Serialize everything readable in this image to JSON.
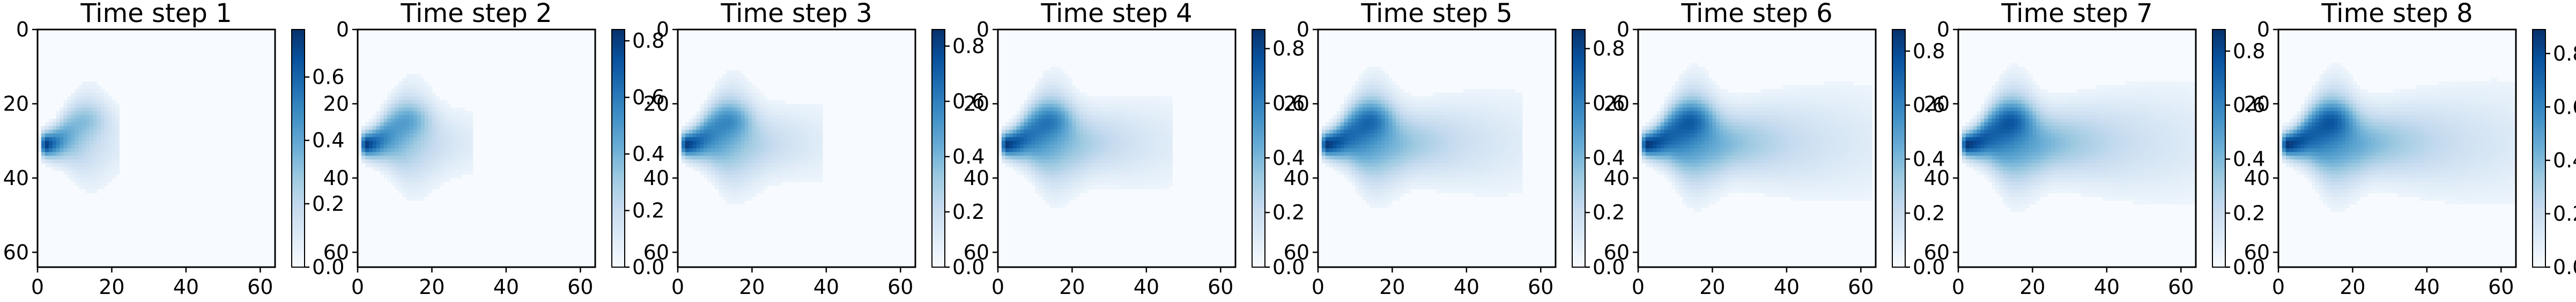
{
  "colors": {
    "cmap_low": "#f7fbff",
    "cmap_high": "#08306b",
    "text": "#000000"
  },
  "chart_data": {
    "type": "heatmap",
    "colormap": "Blues",
    "grid_size": 64,
    "image_axes": {
      "x_ticks": [
        0,
        20,
        40,
        60
      ],
      "y_ticks": [
        0,
        20,
        40,
        60
      ],
      "xlim": [
        0,
        64
      ],
      "ylim": [
        64,
        0
      ]
    },
    "source_point": [
      2,
      31
    ],
    "panels": [
      {
        "title": "Time step 1",
        "plume_length": 20,
        "peak": 0.75,
        "colorbar": {
          "ticks": [
            "0.0",
            "0.2",
            "0.4",
            "0.6"
          ],
          "values": [
            0.0,
            0.2,
            0.4,
            0.6
          ],
          "range": [
            0.0,
            0.75
          ]
        }
      },
      {
        "title": "Time step 2",
        "plume_length": 28,
        "peak": 0.84,
        "colorbar": {
          "ticks": [
            "0.0",
            "0.2",
            "0.4",
            "0.6",
            "0.8"
          ],
          "values": [
            0.0,
            0.2,
            0.4,
            0.6,
            0.8
          ],
          "range": [
            0.0,
            0.84
          ]
        }
      },
      {
        "title": "Time step 3",
        "plume_length": 36,
        "peak": 0.86,
        "colorbar": {
          "ticks": [
            "0.0",
            "0.2",
            "0.4",
            "0.6",
            "0.8"
          ],
          "values": [
            0.0,
            0.2,
            0.4,
            0.6,
            0.8
          ],
          "range": [
            0.0,
            0.86
          ]
        }
      },
      {
        "title": "Time step 4",
        "plume_length": 44,
        "peak": 0.87,
        "colorbar": {
          "ticks": [
            "0.0",
            "0.2",
            "0.4",
            "0.6",
            "0.8"
          ],
          "values": [
            0.0,
            0.2,
            0.4,
            0.6,
            0.8
          ],
          "range": [
            0.0,
            0.87
          ]
        }
      },
      {
        "title": "Time step 5",
        "plume_length": 52,
        "peak": 0.87,
        "colorbar": {
          "ticks": [
            "0.0",
            "0.2",
            "0.4",
            "0.6",
            "0.8"
          ],
          "values": [
            0.0,
            0.2,
            0.4,
            0.6,
            0.8
          ],
          "range": [
            0.0,
            0.87
          ]
        }
      },
      {
        "title": "Time step 6",
        "plume_length": 60,
        "peak": 0.88,
        "colorbar": {
          "ticks": [
            "0.0",
            "0.2",
            "0.4",
            "0.6",
            "0.8"
          ],
          "values": [
            0.0,
            0.2,
            0.4,
            0.6,
            0.8
          ],
          "range": [
            0.0,
            0.88
          ]
        }
      },
      {
        "title": "Time step 7",
        "plume_length": 63,
        "peak": 0.88,
        "colorbar": {
          "ticks": [
            "0.0",
            "0.2",
            "0.4",
            "0.6",
            "0.8"
          ],
          "values": [
            0.0,
            0.2,
            0.4,
            0.6,
            0.8
          ],
          "range": [
            0.0,
            0.88
          ]
        }
      },
      {
        "title": "Time step 8",
        "plume_length": 64,
        "peak": 0.89,
        "colorbar": {
          "ticks": [
            "0.0",
            "0.2",
            "0.4",
            "0.6",
            "0.8"
          ],
          "values": [
            0.0,
            0.2,
            0.4,
            0.6,
            0.8
          ],
          "range": [
            0.0,
            0.89
          ]
        }
      }
    ]
  }
}
